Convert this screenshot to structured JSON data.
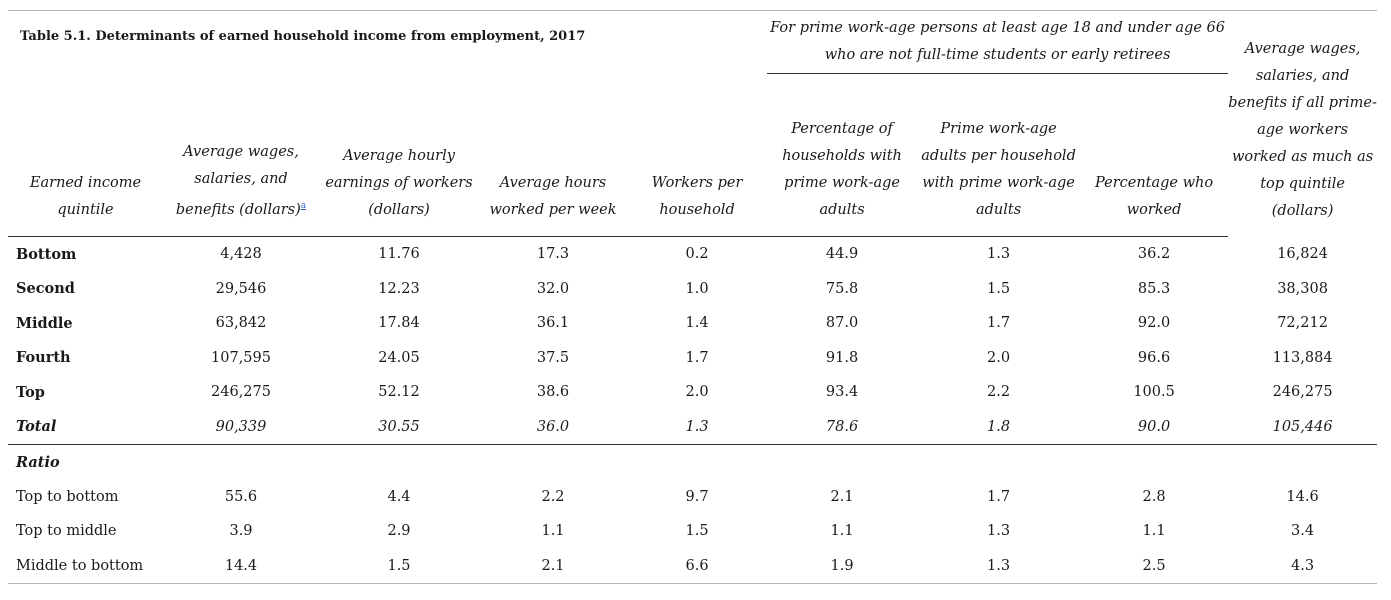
{
  "table": {
    "title": "Table 5.1. Determinants of earned household income from employment, 2017",
    "group_header": "For prime work-age persons at least age 18 and under age 66 who are not full-time students or early retirees",
    "columns": [
      "Earned income quintile",
      "Average wages, salaries, and benefits (dollars)",
      "Average hourly earnings of workers (dollars)",
      "Average hours worked per week",
      "Workers per household",
      "Percentage of households with prime work-age adults",
      "Prime work-age adults per household with prime work-age adults",
      "Percentage who worked",
      "Average wages, salaries, and benefits if all prime-age workers worked as much as top quintile (dollars)"
    ],
    "footnote_mark": "a",
    "rows": [
      {
        "label": "Bottom",
        "values": [
          "4,428",
          "11.76",
          "17.3",
          "0.2",
          "44.9",
          "1.3",
          "36.2",
          "16,824"
        ]
      },
      {
        "label": "Second",
        "values": [
          "29,546",
          "12.23",
          "32.0",
          "1.0",
          "75.8",
          "1.5",
          "85.3",
          "38,308"
        ]
      },
      {
        "label": "Middle",
        "values": [
          "63,842",
          "17.84",
          "36.1",
          "1.4",
          "87.0",
          "1.7",
          "92.0",
          "72,212"
        ]
      },
      {
        "label": "Fourth",
        "values": [
          "107,595",
          "24.05",
          "37.5",
          "1.7",
          "91.8",
          "2.0",
          "96.6",
          "113,884"
        ]
      },
      {
        "label": "Top",
        "values": [
          "246,275",
          "52.12",
          "38.6",
          "2.0",
          "93.4",
          "2.2",
          "100.5",
          "246,275"
        ]
      },
      {
        "label": "Total",
        "values": [
          "90,339",
          "30.55",
          "36.0",
          "1.3",
          "78.6",
          "1.8",
          "90.0",
          "105,446"
        ]
      }
    ],
    "ratio_label": "Ratio",
    "ratio_rows": [
      {
        "label": "Top to bottom",
        "values": [
          "55.6",
          "4.4",
          "2.2",
          "9.7",
          "2.1",
          "1.7",
          "2.8",
          "14.6"
        ]
      },
      {
        "label": "Top to middle",
        "values": [
          "3.9",
          "2.9",
          "1.1",
          "1.5",
          "1.1",
          "1.3",
          "1.1",
          "3.4"
        ]
      },
      {
        "label": "Middle to bottom",
        "values": [
          "14.4",
          "1.5",
          "2.1",
          "6.6",
          "1.9",
          "1.3",
          "2.5",
          "4.3"
        ]
      }
    ]
  }
}
